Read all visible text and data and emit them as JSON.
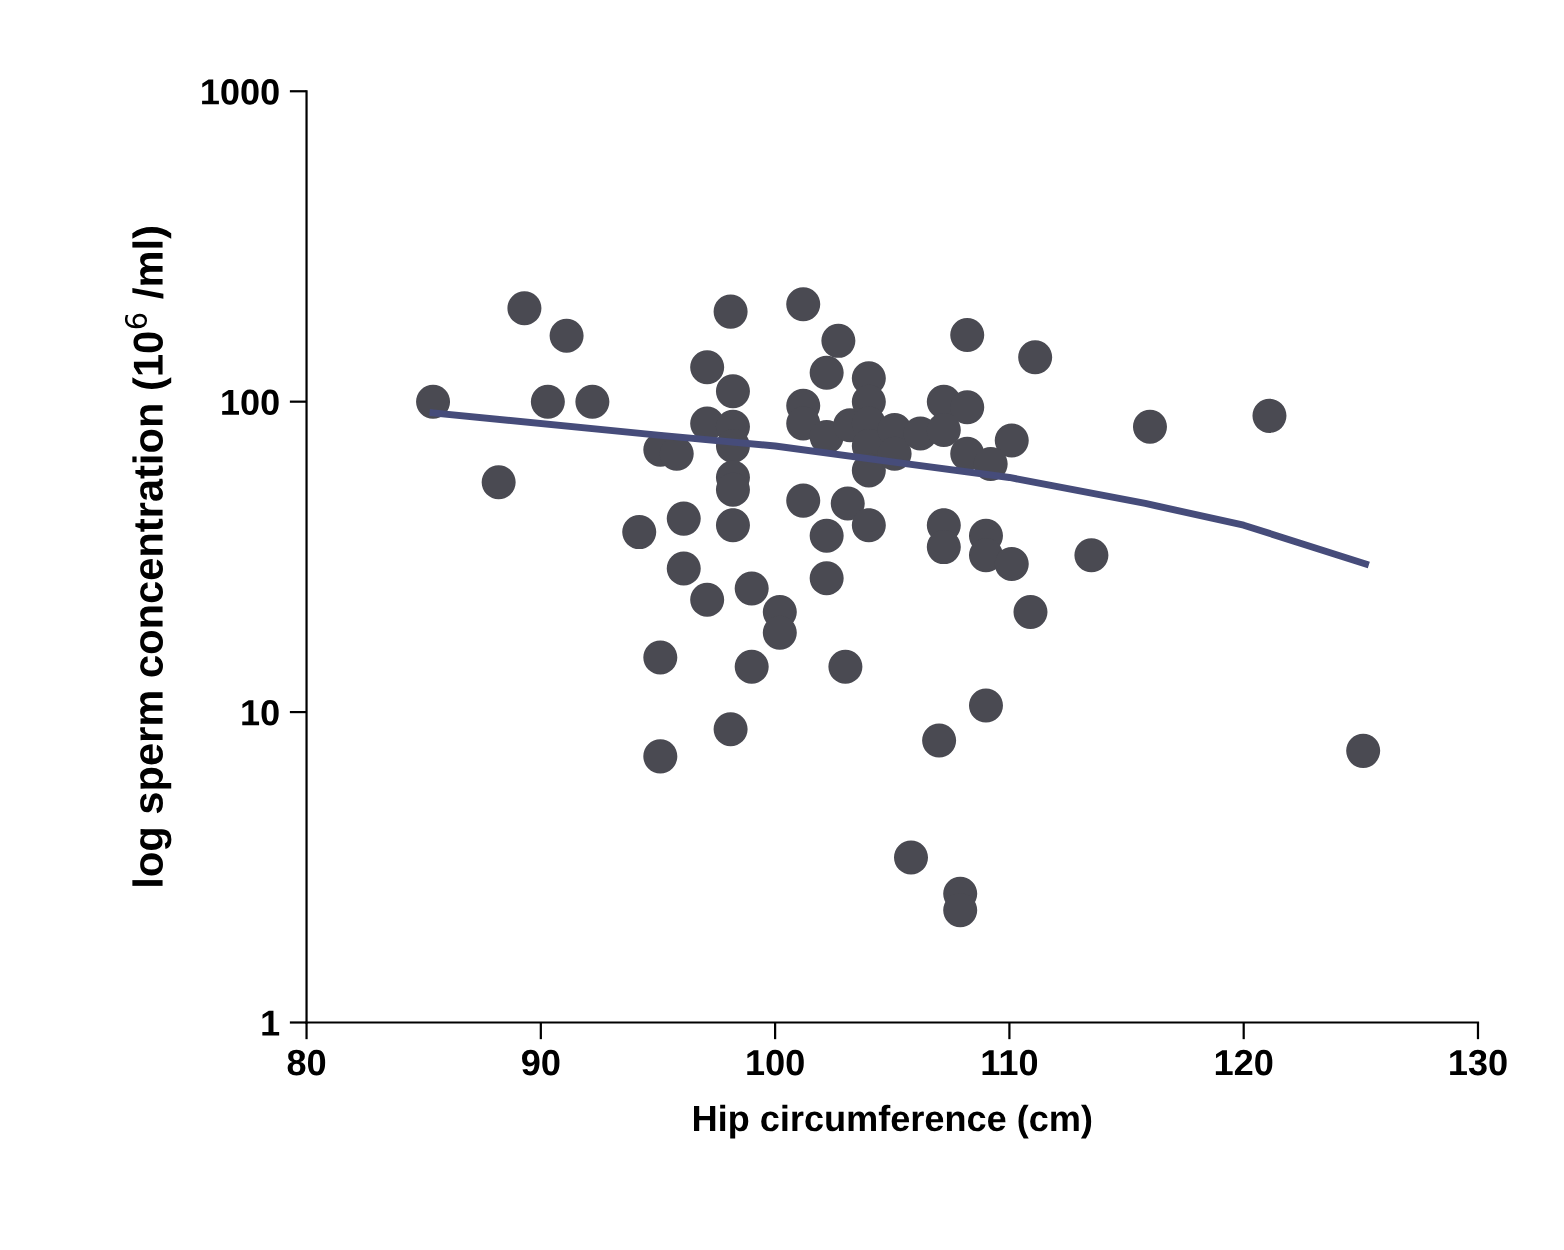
{
  "chart_data": {
    "type": "scatter",
    "xlabel": "Hip circumference (cm)",
    "ylabel": "log sperm concentration (10$^{6}$ /ml)",
    "xlim": [
      80,
      130
    ],
    "xticks": [
      80,
      90,
      100,
      110,
      120,
      130
    ],
    "ylim": [
      1,
      1000
    ],
    "yticks": [
      1,
      10,
      100,
      1000
    ],
    "log": "y",
    "grid": false,
    "series": [
      {
        "marker": "circle",
        "color": "#4a4a52",
        "x": [
          85.4,
          89.3,
          91.1,
          90.3,
          92.2,
          88.2,
          98.1,
          101.2,
          102.7,
          102.2,
          97.1,
          98.2,
          97.1,
          98.2,
          98.2,
          98.2,
          98.2,
          95.1,
          95.8,
          101.2,
          101.2,
          102.2,
          103.2,
          104.0,
          104.0,
          104.0,
          104.0,
          104.0,
          105.1,
          105.1,
          94.2,
          96.1,
          98.2,
          101.2,
          103.1,
          104.0,
          102.2,
          102.2,
          96.1,
          97.1,
          99.0,
          100.2,
          100.2,
          95.1,
          99.0,
          103.0,
          98.1,
          95.1,
          105.8,
          108.2,
          111.1,
          107.2,
          108.2,
          116.0,
          121.1,
          106.2,
          107.2,
          110.1,
          108.2,
          109.2,
          107.2,
          107.2,
          109.0,
          109.0,
          110.1,
          113.5,
          110.9,
          109.0,
          107.0,
          125.1,
          107.9,
          107.9
        ],
        "values": [
          100,
          200,
          163,
          100,
          100,
          55,
          195,
          206,
          157,
          124,
          129,
          108,
          85,
          83,
          72,
          57,
          52,
          70,
          68,
          97,
          85,
          77,
          84,
          119,
          100,
          85,
          72,
          60,
          81,
          68,
          38,
          42,
          40,
          48,
          47,
          40,
          37,
          27,
          29,
          23,
          25,
          21,
          18,
          15,
          14,
          14,
          8.8,
          7.2,
          3.4,
          164,
          139,
          100,
          96,
          83,
          90,
          79,
          81,
          75,
          68,
          63,
          40,
          34,
          37,
          32,
          30,
          32,
          21,
          10.5,
          8.1,
          7.5,
          2.6,
          2.3
        ]
      },
      {
        "type": "line",
        "color": "#464c7a",
        "line_style": "solid",
        "x": [
          85.4,
          95,
          100,
          105,
          110,
          115.8,
          120,
          125.2
        ],
        "values": [
          92,
          78,
          72,
          64,
          57,
          47,
          40,
          30
        ]
      }
    ]
  }
}
